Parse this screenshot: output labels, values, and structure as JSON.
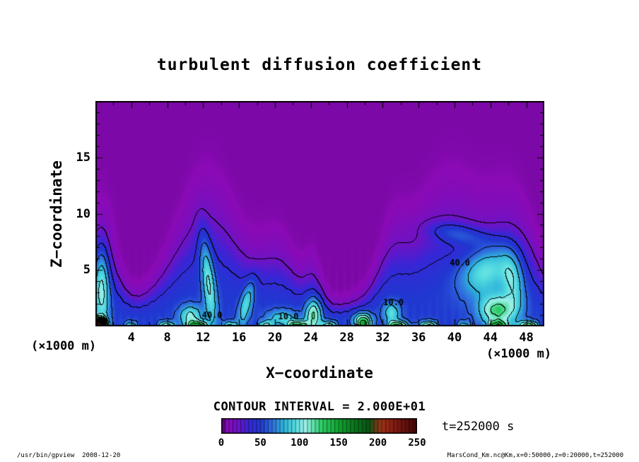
{
  "title": "turbulent diffusion coefficient",
  "axes": {
    "x": {
      "label": "X−coordinate",
      "unit": "(×1000 m)",
      "ticks": [
        4,
        8,
        12,
        16,
        20,
        24,
        28,
        32,
        36,
        40,
        44,
        48
      ],
      "range": [
        0,
        50
      ]
    },
    "z": {
      "label": "Z−coordinate",
      "unit": "(×1000 m)",
      "ticks": [
        5,
        10,
        15
      ],
      "range": [
        0,
        20
      ]
    }
  },
  "colorbar": {
    "caption": "CONTOUR INTERVAL = 2.000E+01",
    "ticks": [
      0,
      50,
      100,
      150,
      200,
      250
    ],
    "range": [
      0,
      250
    ]
  },
  "annotations": {
    "time": "t=252000 s",
    "footer_left": "/usr/bin/gpview  2008-12-20",
    "footer_right": "MarsCond_Km.nc@Km,x=0:50000,z=0:20000,t=252000"
  },
  "chart_data": {
    "type": "heatmap",
    "title": "turbulent diffusion coefficient",
    "xlabel": "X-coordinate (×1000 m)",
    "ylabel": "Z-coordinate (×1000 m)",
    "xlim": [
      0,
      50
    ],
    "ylim": [
      0,
      20
    ],
    "value_range": [
      0,
      250
    ],
    "contour_interval": 20,
    "legend_position": "bottom colorbar",
    "grid": false,
    "contour_labels": [
      {
        "text": "40.0",
        "x": 13.0,
        "z": 0.95
      },
      {
        "text": "10.0",
        "x": 21.5,
        "z": 0.8
      },
      {
        "text": "10.0",
        "x": 33.2,
        "z": 2.1
      },
      {
        "text": "40.0",
        "x": 40.6,
        "z": 5.6
      }
    ],
    "colormap_stops": [
      [
        0,
        "#3c0060"
      ],
      [
        6,
        "#8a0ab6"
      ],
      [
        22,
        "#6a14c6"
      ],
      [
        35,
        "#3826d6"
      ],
      [
        50,
        "#2038d0"
      ],
      [
        65,
        "#2f6ede"
      ],
      [
        80,
        "#2fb4da"
      ],
      [
        95,
        "#55dce0"
      ],
      [
        107,
        "#9ff0ea"
      ],
      [
        118,
        "#5ee0a8"
      ],
      [
        128,
        "#2ecc66"
      ],
      [
        148,
        "#14a834"
      ],
      [
        168,
        "#0a7a20"
      ],
      [
        188,
        "#0a5614"
      ],
      [
        205,
        "#a03018"
      ],
      [
        225,
        "#7a1810"
      ],
      [
        250,
        "#400808"
      ]
    ],
    "field": {
      "base": 5,
      "dome_amp": 46,
      "envelope_base": 1.6,
      "envelope": [
        {
          "c": 0.5,
          "s": 2.5,
          "a": 5.0
        },
        {
          "c": 12.5,
          "s": 5.0,
          "a": 7.6
        },
        {
          "c": 20.5,
          "s": 3.0,
          "a": 3.5
        },
        {
          "c": 24.3,
          "s": 1.3,
          "a": 2.0
        },
        {
          "c": 33.0,
          "s": 2.0,
          "a": 2.4
        },
        {
          "c": 39.5,
          "s": 6.5,
          "a": 7.5
        },
        {
          "c": 47.0,
          "s": 3.5,
          "a": 4.5
        }
      ],
      "blobs": [
        {
          "cx": 12.6,
          "cz": 4.0,
          "sx": 0.75,
          "sz": 4.2,
          "rot": 8,
          "amp": 55
        },
        {
          "cx": 16.8,
          "cz": 2.0,
          "sx": 0.7,
          "sz": 2.2,
          "rot": -18,
          "amp": 45
        },
        {
          "cx": 0.7,
          "cz": 3.5,
          "sx": 0.9,
          "sz": 4.0,
          "rot": 0,
          "amp": 60
        },
        {
          "cx": 24.3,
          "cz": 1.0,
          "sx": 0.9,
          "sz": 1.4,
          "rot": 0,
          "amp": 70
        },
        {
          "cx": 43.5,
          "cz": 5.0,
          "sx": 3.0,
          "sz": 2.0,
          "rot": 25,
          "amp": 55
        },
        {
          "cx": 40.5,
          "cz": 8.2,
          "sx": 3.5,
          "sz": 0.9,
          "rot": -8,
          "amp": 30
        },
        {
          "cx": 44.8,
          "cz": 1.4,
          "sx": 2.0,
          "sz": 1.4,
          "rot": 0,
          "amp": 75
        },
        {
          "cx": 10.6,
          "cz": 0.9,
          "sx": 1.3,
          "sz": 1.0,
          "rot": 0,
          "amp": 55
        },
        {
          "cx": 20.8,
          "cz": 0.7,
          "sx": 1.8,
          "sz": 0.8,
          "rot": 0,
          "amp": 40
        },
        {
          "cx": 29.8,
          "cz": 0.5,
          "sx": 1.0,
          "sz": 0.7,
          "rot": 0,
          "amp": 80
        },
        {
          "cx": 0.4,
          "cz": 0.3,
          "sx": 0.8,
          "sz": 0.5,
          "rot": 0,
          "amp": 150
        },
        {
          "cx": 33.0,
          "cz": 1.2,
          "sx": 1.0,
          "sz": 1.0,
          "rot": 0,
          "amp": 45
        },
        {
          "cx": 46.5,
          "cz": 4.0,
          "sx": 1.2,
          "sz": 2.5,
          "rot": 10,
          "amp": 45
        }
      ],
      "surface_amp": 85,
      "surface_h": 0.45,
      "ripple_amp": 2.5,
      "ripple_k": 7.3,
      "ripple_h": 1.8
    }
  }
}
